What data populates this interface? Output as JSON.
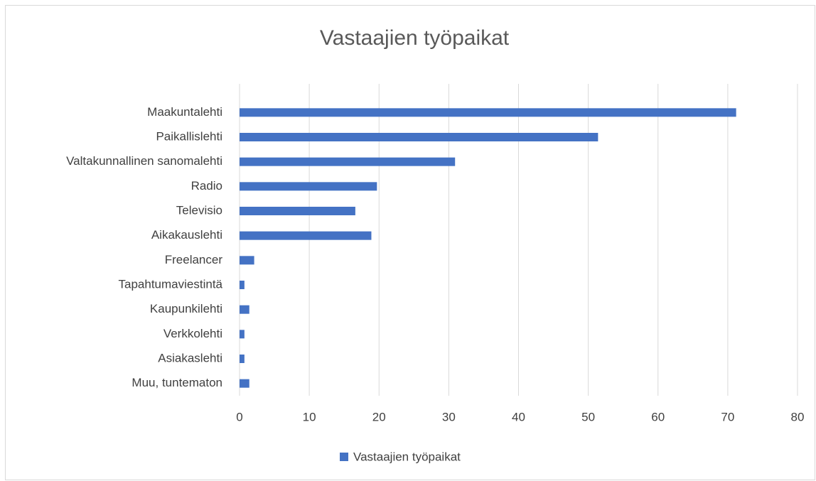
{
  "chart_data": {
    "type": "barh",
    "title": "Vastaajien työpaikat",
    "categories": [
      "Maakuntalehti",
      "Paikallislehti",
      "Valtakunnallinen sanomalehti",
      "Radio",
      "Televisio",
      "Aikakauslehti",
      "Freelancer",
      "Tapahtumaviestintä",
      "Kaupunkilehti",
      "Verkkolehti",
      "Asiakaslehti",
      "Muu, tuntematon"
    ],
    "series": [
      {
        "name": "Vastaajien työpaikat",
        "color": "#4472c4",
        "values": [
          71.2,
          51.4,
          30.9,
          19.7,
          16.6,
          18.9,
          2.1,
          0.7,
          1.4,
          0.7,
          0.7,
          1.4
        ]
      }
    ],
    "xlim": [
      0,
      80
    ],
    "xticks": [
      0,
      10,
      20,
      30,
      40,
      50,
      60,
      70,
      80
    ],
    "grid": true,
    "legend": "bottom"
  }
}
